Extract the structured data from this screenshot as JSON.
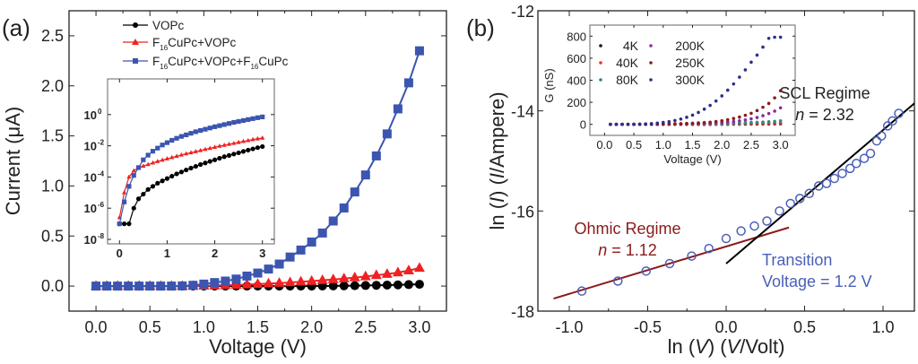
{
  "chart_data": [
    {
      "panel_label": "(a)",
      "type": "line",
      "title": "",
      "xlabel": "Voltage (V)",
      "ylabel": "Current (μA)",
      "xlim": [
        -0.25,
        3.25
      ],
      "ylim": [
        -0.25,
        2.75
      ],
      "xticks": [
        "0.0",
        "0.5",
        "1.0",
        "1.5",
        "2.0",
        "2.5",
        "3.0"
      ],
      "yticks": [
        "0.0",
        "0.5",
        "1.0",
        "1.5",
        "2.0",
        "2.5"
      ],
      "legend_position": "top-left",
      "x": [
        0.0,
        0.1,
        0.2,
        0.3,
        0.4,
        0.5,
        0.6,
        0.7,
        0.8,
        0.9,
        1.0,
        1.1,
        1.2,
        1.3,
        1.4,
        1.5,
        1.6,
        1.7,
        1.8,
        1.9,
        2.0,
        2.1,
        2.2,
        2.3,
        2.4,
        2.5,
        2.6,
        2.7,
        2.8,
        2.9,
        3.0
      ],
      "series": [
        {
          "name": "VOPc",
          "marker": "circle",
          "color": "#000000",
          "values": [
            0,
            0,
            0,
            0,
            0,
            0,
            0,
            0,
            0,
            0,
            0,
            0,
            0,
            0,
            0,
            0,
            0,
            0,
            0,
            0,
            0,
            0.001,
            0.002,
            0.003,
            0.004,
            0.006,
            0.008,
            0.01,
            0.012,
            0.015,
            0.018
          ]
        },
        {
          "name": "F16CuPc+VOPc",
          "marker": "triangle",
          "color": "#ee2222",
          "values": [
            0,
            0,
            0,
            0,
            0,
            0,
            0,
            0,
            0,
            0,
            0.003,
            0.005,
            0.008,
            0.011,
            0.015,
            0.02,
            0.025,
            0.03,
            0.036,
            0.043,
            0.05,
            0.058,
            0.066,
            0.075,
            0.085,
            0.096,
            0.108,
            0.12,
            0.135,
            0.155,
            0.18
          ]
        },
        {
          "name": "F16CuPc+VOPc+F16CuPc",
          "marker": "square",
          "color": "#3b55b0",
          "values": [
            0,
            0,
            0,
            0,
            0,
            0,
            0,
            0,
            0.002,
            0.008,
            0.02,
            0.035,
            0.05,
            0.07,
            0.1,
            0.13,
            0.17,
            0.22,
            0.29,
            0.36,
            0.44,
            0.53,
            0.65,
            0.78,
            0.94,
            1.11,
            1.3,
            1.52,
            1.77,
            2.03,
            2.35
          ]
        }
      ],
      "inset": {
        "type": "line",
        "yscale": "log",
        "xlim": [
          -0.25,
          3.25
        ],
        "ylim_exp": [
          -8,
          2
        ],
        "xticks": [
          "0",
          "1",
          "2",
          "3"
        ],
        "yticks": [
          "10",
          "10",
          "10",
          "10",
          "10"
        ],
        "ytick_exponents": [
          "-8",
          "-6",
          "-4",
          "-2",
          "0"
        ],
        "x": [
          0.0,
          0.1,
          0.2,
          0.3,
          0.4,
          0.5,
          0.6,
          0.7,
          0.8,
          0.9,
          1.0,
          1.1,
          1.2,
          1.3,
          1.4,
          1.5,
          1.6,
          1.7,
          1.8,
          1.9,
          2.0,
          2.1,
          2.2,
          2.3,
          2.4,
          2.5,
          2.6,
          2.7,
          2.8,
          2.9,
          3.0
        ],
        "series_log10": [
          {
            "name": "VOPc",
            "values": [
              -7,
              -7,
              -7,
              -6,
              -5.4,
              -5.1,
              -4.8,
              -4.6,
              -4.4,
              -4.25,
              -4.1,
              -3.95,
              -3.8,
              -3.68,
              -3.55,
              -3.43,
              -3.32,
              -3.2,
              -3.1,
              -3.0,
              -2.9,
              -2.8,
              -2.7,
              -2.62,
              -2.53,
              -2.45,
              -2.36,
              -2.28,
              -2.2,
              -2.12,
              -2.05
            ]
          },
          {
            "name": "F16CuPc+VOPc",
            "values": [
              -6.6,
              -5,
              -4,
              -3.6,
              -3.4,
              -3.3,
              -3.2,
              -3.1,
              -3.0,
              -2.92,
              -2.83,
              -2.75,
              -2.67,
              -2.59,
              -2.51,
              -2.44,
              -2.37,
              -2.3,
              -2.23,
              -2.16,
              -2.09,
              -2.02,
              -1.96,
              -1.9,
              -1.84,
              -1.78,
              -1.72,
              -1.66,
              -1.6,
              -1.55,
              -1.5
            ]
          },
          {
            "name": "F16CuPc+VOPc+F16CuPc",
            "values": [
              -7,
              -5.6,
              -4.6,
              -3.9,
              -3.4,
              -2.9,
              -2.6,
              -2.35,
              -2.15,
              -1.95,
              -1.8,
              -1.65,
              -1.52,
              -1.4,
              -1.3,
              -1.2,
              -1.1,
              -1.02,
              -0.94,
              -0.86,
              -0.78,
              -0.71,
              -0.64,
              -0.57,
              -0.5,
              -0.44,
              -0.38,
              -0.32,
              -0.26,
              -0.2,
              -0.15
            ]
          }
        ]
      },
      "legend": [
        {
          "label": "F",
          "sub": "16",
          "rest": "CuPc+VOPc",
          "sub2": "",
          "rest2": ""
        }
      ]
    },
    {
      "panel_label": "(b)",
      "type": "scatter",
      "title": "",
      "xlabel": "ln (V) (V/Volt)",
      "ylabel": "ln (I) (I/Ampere)",
      "xlim": [
        -1.2,
        1.2
      ],
      "ylim": [
        -18,
        -12
      ],
      "xticks": [
        "-1.0",
        "-0.5",
        "0.0",
        "0.5",
        "1.0"
      ],
      "yticks": [
        "-18",
        "-16",
        "-14",
        "-12"
      ],
      "points_x": [
        -0.92,
        -0.69,
        -0.51,
        -0.36,
        -0.22,
        -0.11,
        0.0,
        0.095,
        0.18,
        0.26,
        0.34,
        0.41,
        0.47,
        0.53,
        0.59,
        0.64,
        0.69,
        0.74,
        0.79,
        0.83,
        0.88,
        0.92,
        0.96,
        0.99,
        1.03,
        1.06,
        1.1
      ],
      "points_y": [
        -17.6,
        -17.4,
        -17.2,
        -17.05,
        -16.9,
        -16.75,
        -16.55,
        -16.4,
        -16.3,
        -16.2,
        -16.0,
        -15.85,
        -15.75,
        -15.65,
        -15.5,
        -15.45,
        -15.35,
        -15.25,
        -15.15,
        -15.05,
        -14.95,
        -14.85,
        -14.6,
        -14.5,
        -14.3,
        -14.2,
        -14.05
      ],
      "fit_lines": [
        {
          "name": "Ohmic fit",
          "color": "#8b1a1a",
          "x": [
            -1.1,
            0.4
          ],
          "y": [
            -17.75,
            -16.33
          ]
        },
        {
          "name": "SCL fit",
          "color": "#000000",
          "x": [
            0.0,
            1.2
          ],
          "y": [
            -17.05,
            -13.85
          ]
        }
      ],
      "annotations": {
        "ohmic_title": "Ohmic Regime",
        "ohmic_n_label": "n",
        "ohmic_n_value": " = 1.12",
        "scl_title": "SCL Regime",
        "scl_n_label": "n",
        "scl_n_value": " = 2.32",
        "transition_line1": "Transition",
        "transition_line2": "Voltage = 1.2 V"
      },
      "inset": {
        "type": "scatter",
        "xlabel": "Voltage (V)",
        "ylabel": "G (nS)",
        "xlim": [
          -0.25,
          3.25
        ],
        "ylim": [
          -100,
          900
        ],
        "xticks": [
          "0.0",
          "0.5",
          "1.0",
          "1.5",
          "2.0",
          "2.5",
          "3.0"
        ],
        "yticks": [
          "0",
          "200",
          "400",
          "600",
          "800"
        ],
        "x": [
          0.1,
          0.2,
          0.3,
          0.4,
          0.5,
          0.6,
          0.7,
          0.8,
          0.9,
          1.0,
          1.1,
          1.2,
          1.3,
          1.4,
          1.5,
          1.6,
          1.7,
          1.8,
          1.9,
          2.0,
          2.1,
          2.2,
          2.3,
          2.4,
          2.5,
          2.6,
          2.7,
          2.8,
          2.9,
          3.0
        ],
        "series": [
          {
            "name": "4K",
            "color": "#111111",
            "values": [
              0,
              0,
              0,
              0,
              0,
              0,
              0,
              0,
              0,
              0,
              0,
              0,
              0,
              0,
              0,
              0,
              0,
              0,
              1,
              1,
              1,
              2,
              2,
              2,
              3,
              3,
              4,
              4,
              5,
              6
            ]
          },
          {
            "name": "40K",
            "color": "#e8322a",
            "values": [
              0,
              0,
              0,
              0,
              0,
              0,
              0,
              0,
              0,
              0,
              0,
              1,
              1,
              1,
              1,
              2,
              2,
              2,
              3,
              3,
              4,
              4,
              5,
              6,
              6,
              7,
              8,
              9,
              10,
              12
            ]
          },
          {
            "name": "80K",
            "color": "#1f8f8a",
            "values": [
              0,
              0,
              0,
              0,
              0,
              0,
              0,
              0,
              1,
              1,
              1,
              2,
              2,
              3,
              3,
              4,
              5,
              6,
              7,
              8,
              9,
              11,
              12,
              14,
              16,
              18,
              21,
              24,
              27,
              32
            ]
          },
          {
            "name": "200K",
            "color": "#8e2a9a",
            "values": [
              0,
              0,
              0,
              0,
              0,
              0,
              1,
              1,
              1,
              2,
              2,
              3,
              4,
              5,
              6,
              7,
              9,
              11,
              14,
              17,
              21,
              26,
              32,
              40,
              50,
              62,
              78,
              98,
              120,
              150
            ]
          },
          {
            "name": "250K",
            "color": "#8b1a1a",
            "values": [
              0,
              0,
              0,
              0,
              0,
              1,
              1,
              1,
              2,
              3,
              4,
              5,
              6,
              8,
              10,
              13,
              16,
              20,
              26,
              33,
              42,
              53,
              66,
              82,
              100,
              125,
              155,
              190,
              240,
              305
            ]
          },
          {
            "name": "300K",
            "color": "#2a2f8c",
            "values": [
              0,
              0,
              0,
              0,
              1,
              2,
              4,
              7,
              11,
              17,
              25,
              35,
              48,
              64,
              84,
              108,
              138,
              172,
              212,
              258,
              310,
              366,
              428,
              494,
              564,
              628,
              700,
              780,
              790,
              790
            ]
          }
        ]
      }
    }
  ],
  "legend_a": {
    "item1": "VOPc",
    "item2_pre": "F",
    "item2_sub": "16",
    "item2_post": "CuPc+VOPc",
    "item3_pre": "F",
    "item3_sub": "16",
    "item3_mid": "CuPc+VOPc+F",
    "item3_sub2": "16",
    "item3_post": "CuPc"
  },
  "legend_b": [
    "4K",
    "40K",
    "80K",
    "200K",
    "250K",
    "300K"
  ]
}
